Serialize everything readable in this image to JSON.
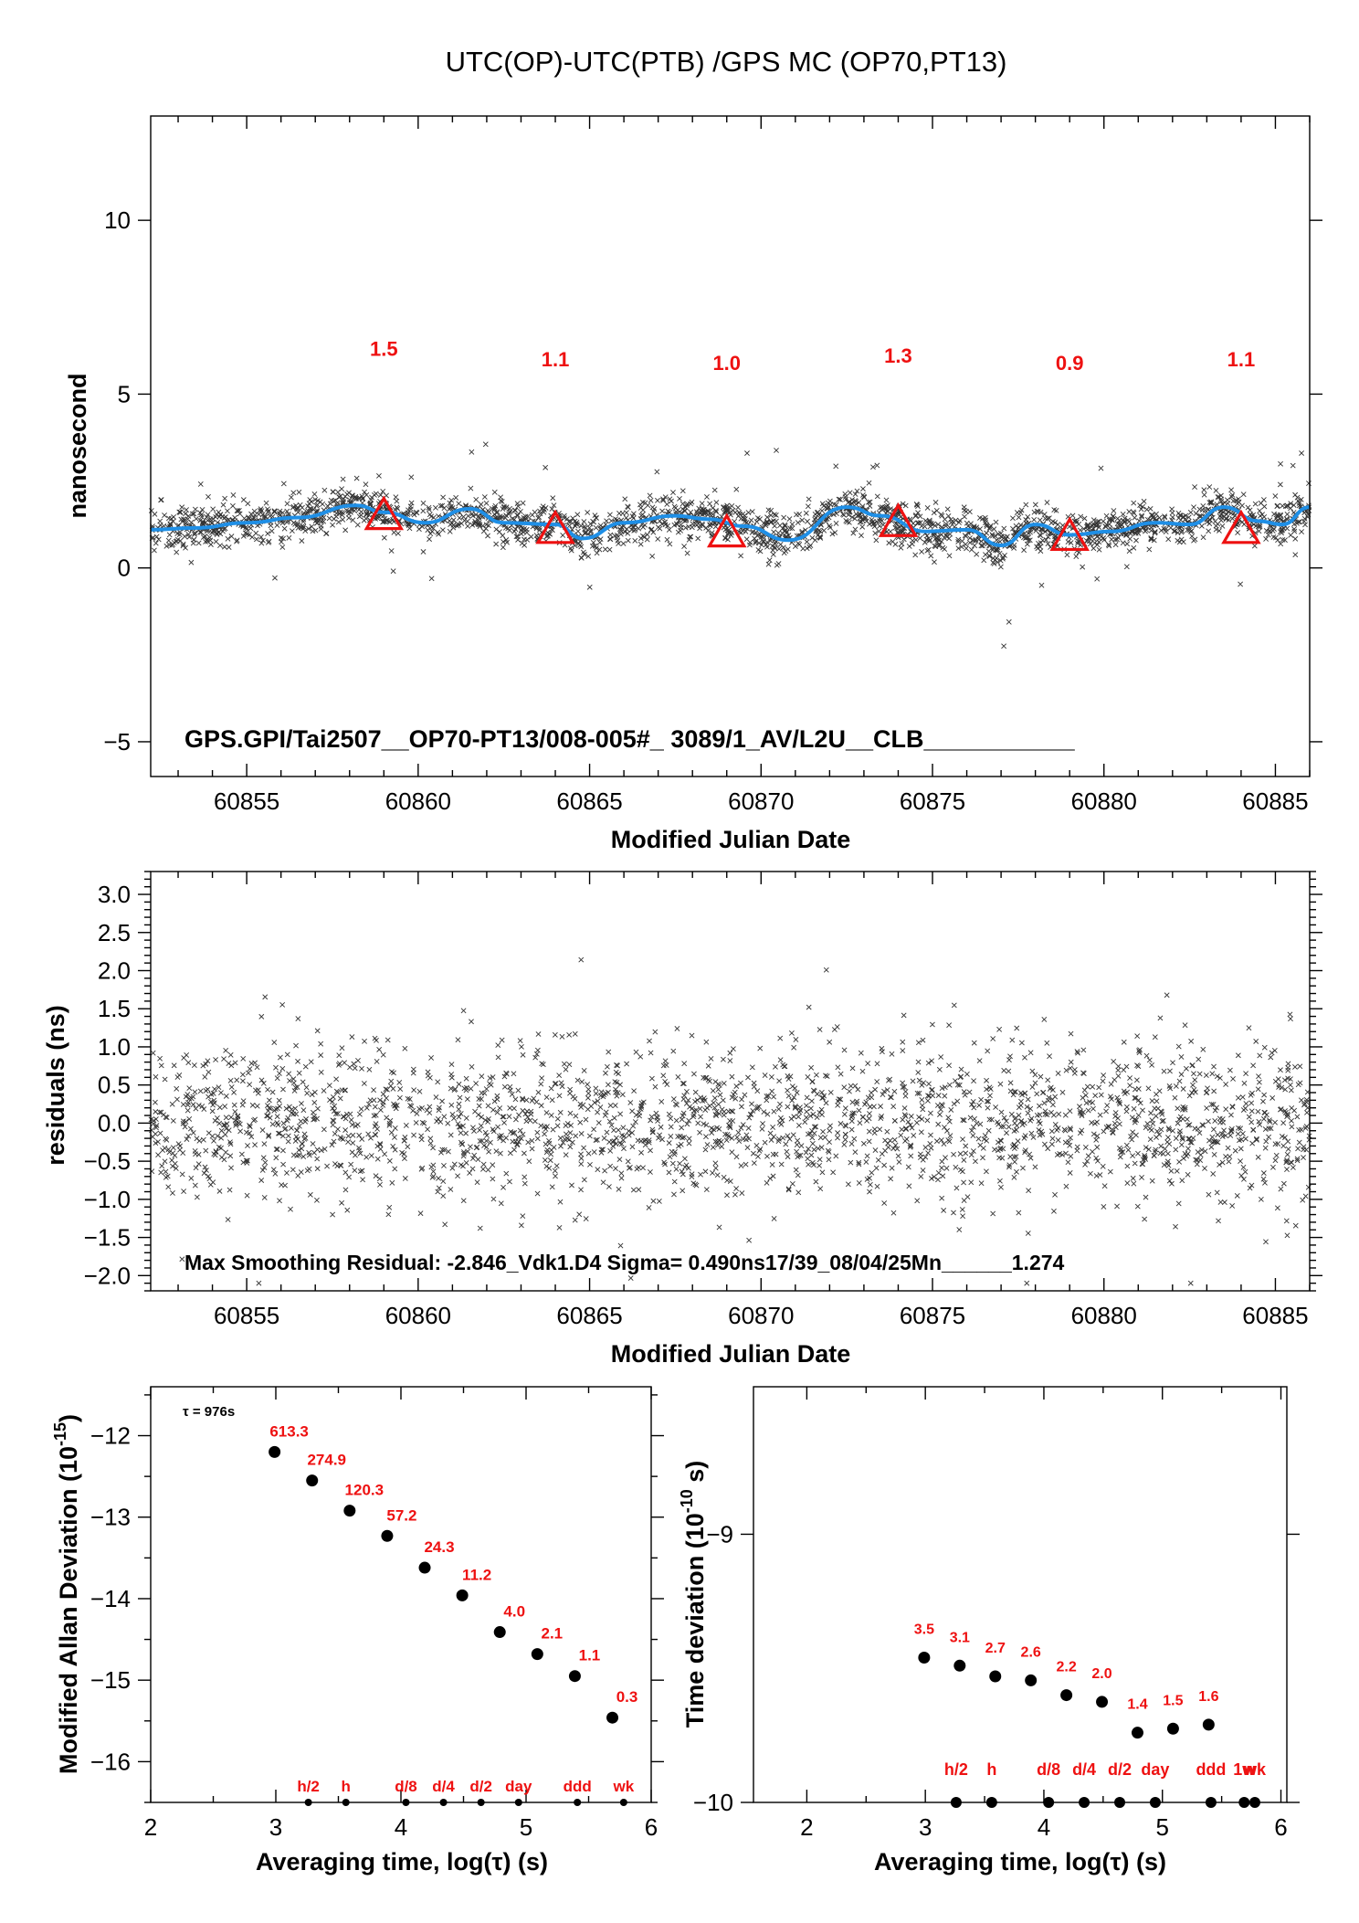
{
  "title": "UTC(OP)-UTC(PTB)  /GPS  MC  (OP70,PT13)",
  "chart_data": [
    {
      "id": "top",
      "type": "scatter",
      "xlabel": "Modified Julian Date",
      "ylabel": "nanosecond",
      "xlim": [
        60852.2,
        60886.0
      ],
      "ylim": [
        -6.0,
        13.0
      ],
      "xticks": [
        60855,
        60860,
        60865,
        60870,
        60875,
        60880,
        60885
      ],
      "yticks": [
        -5,
        0,
        5,
        10
      ],
      "annotation": "GPS.GPI/Tai2507__OP70-PT13/008-005#_  3089/1_AV/L2U__CLB___________",
      "smooth_curve": {
        "color": "#1f8fe6",
        "x": [
          60852.2,
          60853.5,
          60855,
          60856.5,
          60858.2,
          60859,
          60860.2,
          60861.5,
          60862.5,
          60864,
          60864.8,
          60866,
          60867.5,
          60868.5,
          60869.5,
          60870.8,
          60872.5,
          60873.5,
          60874.8,
          60876,
          60877,
          60878,
          60879,
          60880.2,
          60881.5,
          60882.5,
          60883.5,
          60884.5,
          60885.2,
          60886.0
        ],
        "y": [
          1.1,
          1.15,
          1.3,
          1.45,
          1.8,
          1.6,
          1.3,
          1.7,
          1.3,
          1.25,
          0.85,
          1.3,
          1.5,
          1.4,
          1.2,
          0.8,
          1.75,
          1.5,
          1.05,
          1.1,
          0.65,
          1.25,
          0.95,
          1.05,
          1.3,
          1.25,
          1.75,
          1.35,
          1.25,
          1.75
        ]
      },
      "scatter_center": {
        "x": [
          60852.2,
          60853.5,
          60855,
          60856.5,
          60858.2,
          60859,
          60860.2,
          60861.5,
          60862.5,
          60864,
          60864.8,
          60866,
          60867.5,
          60868.5,
          60869.5,
          60870.8,
          60872.5,
          60873.5,
          60874.8,
          60876,
          60877,
          60878,
          60879,
          60880.2,
          60881.5,
          60882.5,
          60883.5,
          60884.5,
          60885.2,
          60886.0
        ],
        "y": [
          1.1,
          1.15,
          1.3,
          1.45,
          1.8,
          1.6,
          1.3,
          1.7,
          1.3,
          1.25,
          0.85,
          1.3,
          1.5,
          1.4,
          1.2,
          0.8,
          1.75,
          1.5,
          1.05,
          1.1,
          0.65,
          1.25,
          0.95,
          1.05,
          1.3,
          1.25,
          1.75,
          1.35,
          1.25,
          1.75
        ]
      },
      "scatter_sigma_ns": 0.49,
      "markers": [
        {
          "x": 60859,
          "y": 1.5,
          "label": "1.5"
        },
        {
          "x": 60864,
          "y": 1.1,
          "label": "1.1"
        },
        {
          "x": 60869,
          "y": 1.0,
          "label": "1.0"
        },
        {
          "x": 60874,
          "y": 1.3,
          "label": "1.3"
        },
        {
          "x": 60879,
          "y": 0.9,
          "label": "0.9"
        },
        {
          "x": 60884,
          "y": 1.1,
          "label": "1.1"
        }
      ],
      "marker_label_y": [
        6.1,
        5.8,
        5.7,
        5.9,
        5.7,
        5.8
      ],
      "marker_color": "#ee1111"
    },
    {
      "id": "residuals",
      "type": "scatter",
      "xlabel": "Modified Julian Date",
      "ylabel": "residuals (ns)",
      "xlim": [
        60852.2,
        60886.0
      ],
      "ylim": [
        -2.2,
        3.3
      ],
      "xticks": [
        60855,
        60860,
        60865,
        60870,
        60875,
        60880,
        60885
      ],
      "yticks": [
        -2.0,
        -1.5,
        -1.0,
        -0.5,
        0.0,
        0.5,
        1.0,
        1.5,
        2.0,
        2.5,
        3.0
      ],
      "ytick_labels": [
        "−2.0",
        "−1.5",
        "−1.0",
        "−0.5",
        "0.0",
        "0.5",
        "1.0",
        "1.5",
        "2.0",
        "2.5",
        "3.0"
      ],
      "sigma_ns": 0.49,
      "annotation": "Max Smoothing Residual: -2.846_Vdk1.D4  Sigma= 0.490ns17/39_08/04/25Mn______1.274"
    },
    {
      "id": "mdev",
      "type": "scatter",
      "xlabel": "Averaging time, log(τ) (s)",
      "ylabel_main": "Modified Allan Deviation (10",
      "ylabel_exp": "-15",
      "ylabel_end": ")",
      "xlim": [
        2,
        6
      ],
      "ylim": [
        -16.5,
        -11.4
      ],
      "xticks": [
        2,
        3,
        4,
        5,
        6
      ],
      "yticks": [
        -16,
        -15,
        -14,
        -13,
        -12
      ],
      "ytick_labels": [
        "−16",
        "−15",
        "−14",
        "−13",
        "−12"
      ],
      "tau_note": "τ = 976s",
      "x": [
        2.99,
        3.29,
        3.59,
        3.89,
        4.19,
        4.49,
        4.79,
        5.09,
        5.39,
        5.69
      ],
      "y": [
        -12.2,
        -12.55,
        -12.92,
        -13.23,
        -13.62,
        -13.96,
        -14.41,
        -14.68,
        -14.95,
        -15.46
      ],
      "point_labels": [
        "613.3",
        "274.9",
        "120.3",
        "57.2",
        "24.3",
        "11.2",
        "4.0",
        "2.1",
        "1.1",
        "0.3"
      ],
      "reference_labels": [
        "h/2",
        "h",
        "d/8",
        "d/4",
        "d/2",
        "day",
        "ddd",
        "wk"
      ],
      "reference_x": [
        3.26,
        3.56,
        4.04,
        4.34,
        4.64,
        4.94,
        5.41,
        5.78
      ]
    },
    {
      "id": "tdev",
      "type": "scatter",
      "xlabel": "Averaging time, log(τ) (s)",
      "ylabel_main": "Time deviation (10",
      "ylabel_exp": "-10",
      "ylabel_end": " s)",
      "xlim": [
        1.55,
        6.05
      ],
      "ylim": [
        -10.0,
        -8.45
      ],
      "xticks": [
        2,
        3,
        4,
        5,
        6
      ],
      "yticks": [
        -10,
        -9
      ],
      "ytick_labels": [
        "−10",
        "−9"
      ],
      "x": [
        2.99,
        3.29,
        3.59,
        3.89,
        4.19,
        4.49,
        4.79,
        5.09,
        5.39
      ],
      "y": [
        -9.46,
        -9.49,
        -9.53,
        -9.545,
        -9.6,
        -9.625,
        -9.74,
        -9.725,
        -9.71
      ],
      "point_labels": [
        "3.5",
        "3.1",
        "2.7",
        "2.6",
        "2.2",
        "2.0",
        "1.4",
        "1.5",
        "1.6"
      ],
      "reference_labels": [
        "h/2",
        "h",
        "d/8",
        "d/4",
        "d/2",
        "day",
        "ddd",
        "1w",
        "wk"
      ],
      "reference_x": [
        3.26,
        3.56,
        4.04,
        4.34,
        4.64,
        4.94,
        5.41,
        5.69,
        5.78
      ]
    }
  ]
}
